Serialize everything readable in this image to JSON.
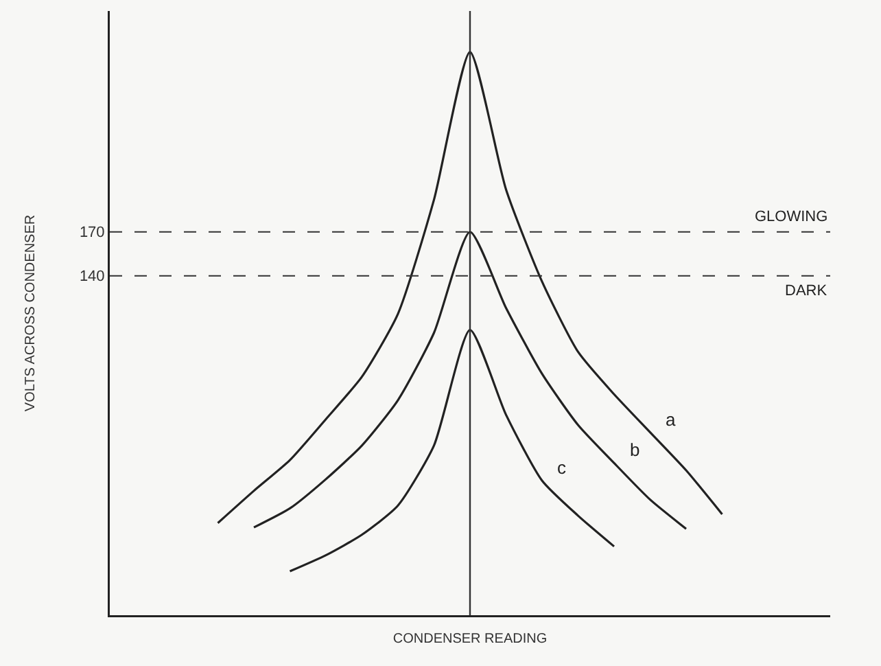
{
  "chart_data": {
    "type": "line",
    "xlabel": "CONDENSER READING",
    "ylabel": "VOLTS ACROSS CONDENSER",
    "categories": [
      null,
      null,
      null,
      null,
      null,
      null,
      null,
      null,
      null,
      null,
      null,
      null,
      null,
      null,
      null,
      null,
      null,
      null,
      null,
      null,
      null
    ],
    "series": [
      {
        "name": "a",
        "color": "#222222",
        "values": [
          null,
          null,
          null,
          -29,
          -7,
          14,
          42,
          71,
          114,
          192,
          293,
          199,
          136,
          88,
          59,
          33,
          7,
          -23,
          null,
          null,
          null
        ]
      },
      {
        "name": "b",
        "color": "#222222",
        "values": [
          null,
          null,
          null,
          null,
          -32,
          -19,
          1,
          24,
          55,
          101,
          170,
          118,
          73,
          38,
          12,
          -13,
          -33,
          null,
          null,
          null,
          null
        ]
      },
      {
        "name": "c",
        "color": "#222222",
        "values": [
          null,
          null,
          null,
          null,
          null,
          -62,
          -51,
          -37,
          -17,
          24,
          103,
          45,
          0,
          -24,
          -45,
          null,
          null,
          null,
          null,
          null,
          null
        ]
      }
    ],
    "ylim": [
      -92,
      321
    ],
    "yticks": [
      140,
      170
    ],
    "tick_labels": "y",
    "grid": false,
    "legend": false,
    "marker": "none",
    "line_style": "solid",
    "ref_lines": [
      {
        "axis": "y",
        "value": 170,
        "label": "GLOWING",
        "line_style": "dashed"
      },
      {
        "axis": "y",
        "value": 140,
        "label": "DARK",
        "line_style": "dashed"
      }
    ]
  }
}
